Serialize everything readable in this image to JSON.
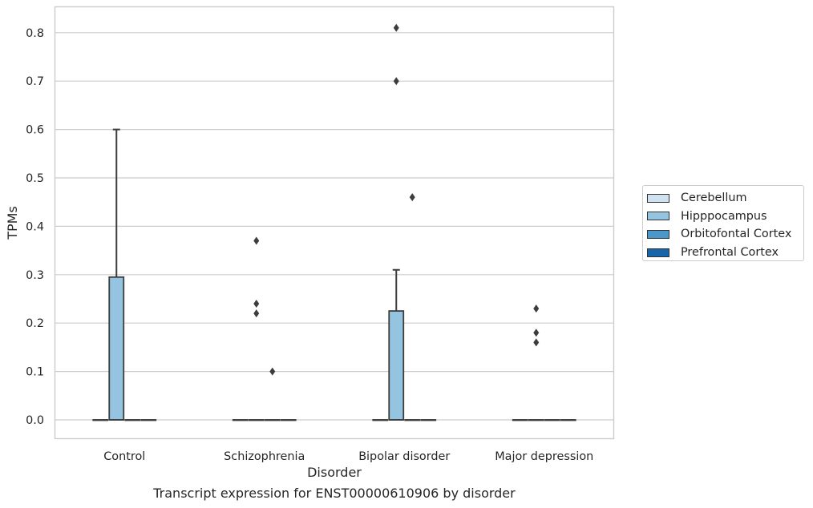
{
  "chart_data": {
    "type": "box",
    "xlabel": "Disorder",
    "ylabel": "TPMs",
    "caption": "Transcript expression for ENST00000610906 by disorder",
    "categories": [
      "Control",
      "Schizophrenia",
      "Bipolar disorder",
      "Major depression"
    ],
    "ylim": [
      -0.04,
      0.85
    ],
    "yticks": [
      "0.0",
      "0.1",
      "0.2",
      "0.3",
      "0.4",
      "0.5",
      "0.6",
      "0.7",
      "0.8"
    ],
    "grid": true,
    "legend_position": "right",
    "series": [
      {
        "name": "Cerebellum",
        "color": "#d0e1f2",
        "boxes": [
          {
            "category": "Control",
            "q1": 0,
            "median": 0,
            "q3": 0,
            "whisker_low": 0,
            "whisker_high": 0,
            "outliers": []
          },
          {
            "category": "Schizophrenia",
            "q1": 0,
            "median": 0,
            "q3": 0,
            "whisker_low": 0,
            "whisker_high": 0,
            "outliers": []
          },
          {
            "category": "Bipolar disorder",
            "q1": 0,
            "median": 0,
            "q3": 0,
            "whisker_low": 0,
            "whisker_high": 0,
            "outliers": []
          },
          {
            "category": "Major depression",
            "q1": 0,
            "median": 0,
            "q3": 0,
            "whisker_low": 0,
            "whisker_high": 0,
            "outliers": []
          }
        ]
      },
      {
        "name": "Hipppocampus",
        "color": "#94c4df",
        "boxes": [
          {
            "category": "Control",
            "q1": 0,
            "median": 0,
            "q3": 0.295,
            "whisker_low": 0,
            "whisker_high": 0.6,
            "outliers": []
          },
          {
            "category": "Schizophrenia",
            "q1": 0,
            "median": 0,
            "q3": 0,
            "whisker_low": 0,
            "whisker_high": 0,
            "outliers": [
              0.37,
              0.24,
              0.22
            ]
          },
          {
            "category": "Bipolar disorder",
            "q1": 0,
            "median": 0,
            "q3": 0.225,
            "whisker_low": 0,
            "whisker_high": 0.31,
            "outliers": [
              0.81,
              0.7
            ]
          },
          {
            "category": "Major depression",
            "q1": 0,
            "median": 0,
            "q3": 0,
            "whisker_low": 0,
            "whisker_high": 0,
            "outliers": [
              0.23,
              0.18,
              0.16
            ]
          }
        ]
      },
      {
        "name": "Orbitofontal Cortex",
        "color": "#4a98c9",
        "boxes": [
          {
            "category": "Control",
            "q1": 0,
            "median": 0,
            "q3": 0,
            "whisker_low": 0,
            "whisker_high": 0,
            "outliers": []
          },
          {
            "category": "Schizophrenia",
            "q1": 0,
            "median": 0,
            "q3": 0,
            "whisker_low": 0,
            "whisker_high": 0,
            "outliers": [
              0.1
            ]
          },
          {
            "category": "Bipolar disorder",
            "q1": 0,
            "median": 0,
            "q3": 0,
            "whisker_low": 0,
            "whisker_high": 0,
            "outliers": [
              0.46
            ]
          },
          {
            "category": "Major depression",
            "q1": 0,
            "median": 0,
            "q3": 0,
            "whisker_low": 0,
            "whisker_high": 0,
            "outliers": []
          }
        ]
      },
      {
        "name": "Prefrontal Cortex",
        "color": "#1764ab",
        "boxes": [
          {
            "category": "Control",
            "q1": 0,
            "median": 0,
            "q3": 0,
            "whisker_low": 0,
            "whisker_high": 0,
            "outliers": []
          },
          {
            "category": "Schizophrenia",
            "q1": 0,
            "median": 0,
            "q3": 0,
            "whisker_low": 0,
            "whisker_high": 0,
            "outliers": []
          },
          {
            "category": "Bipolar disorder",
            "q1": 0,
            "median": 0,
            "q3": 0,
            "whisker_low": 0,
            "whisker_high": 0,
            "outliers": []
          },
          {
            "category": "Major depression",
            "q1": 0,
            "median": 0,
            "q3": 0,
            "whisker_low": 0,
            "whisker_high": 0,
            "outliers": []
          }
        ]
      }
    ]
  }
}
